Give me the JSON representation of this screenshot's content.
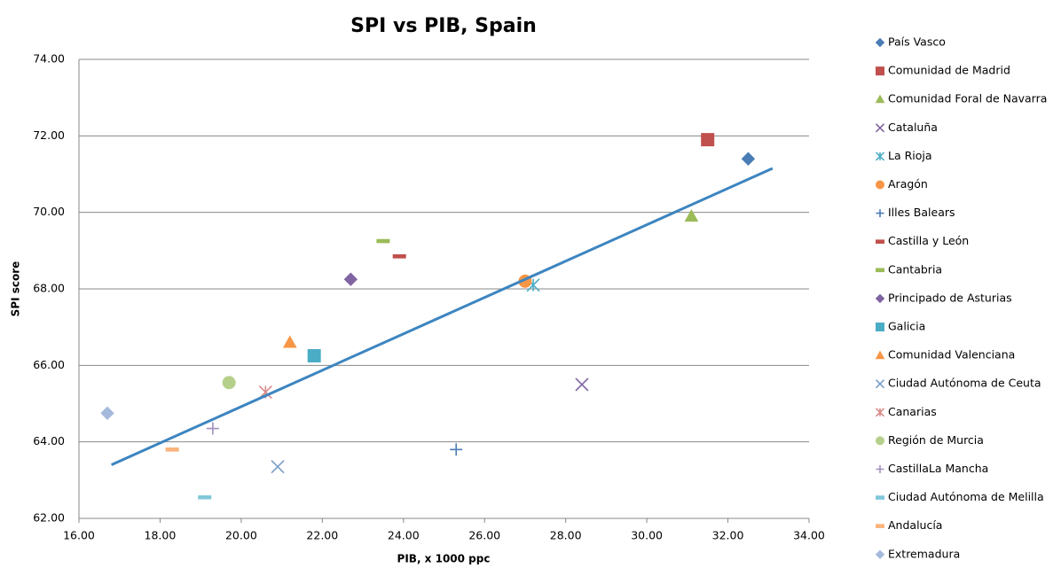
{
  "chart_data": {
    "type": "scatter",
    "title": "SPI vs PIB, Spain",
    "x_label": "PIB, x 1000 ppc",
    "y_label": "SPI score",
    "xlim": [
      16,
      34
    ],
    "ylim": [
      62,
      74
    ],
    "xticks": [
      {
        "value": 16,
        "label": "16.00"
      },
      {
        "value": 18,
        "label": "18.00"
      },
      {
        "value": 20,
        "label": "20.00"
      },
      {
        "value": 22,
        "label": "22.00"
      },
      {
        "value": 24,
        "label": "24.00"
      },
      {
        "value": 26,
        "label": "26.00"
      },
      {
        "value": 28,
        "label": "28.00"
      },
      {
        "value": 30,
        "label": "30.00"
      },
      {
        "value": 32,
        "label": "32.00"
      },
      {
        "value": 34,
        "label": "34.00"
      }
    ],
    "yticks": [
      {
        "value": 62,
        "label": "62.00"
      },
      {
        "value": 64,
        "label": "64.00"
      },
      {
        "value": 66,
        "label": "66.00"
      },
      {
        "value": 68,
        "label": "68.00"
      },
      {
        "value": 70,
        "label": "70.00"
      },
      {
        "value": 72,
        "label": "72.00"
      },
      {
        "value": 74,
        "label": "74.00"
      }
    ],
    "grid": true,
    "legend": "right",
    "series": [
      {
        "name": "País Vasco",
        "color": "#4a7db5",
        "marker": "diamond",
        "x": [
          32.5
        ],
        "y": [
          71.4
        ]
      },
      {
        "name": "Comunidad de Madrid",
        "color": "#c0504d",
        "marker": "square",
        "x": [
          31.5
        ],
        "y": [
          71.9
        ]
      },
      {
        "name": "Comunidad Foral de Navarra",
        "color": "#9bbb59",
        "marker": "triangle",
        "x": [
          31.1
        ],
        "y": [
          69.9
        ]
      },
      {
        "name": "Cataluña",
        "color": "#8064a2",
        "marker": "x",
        "x": [
          28.4
        ],
        "y": [
          65.5
        ]
      },
      {
        "name": "La Rioja",
        "color": "#4bacc6",
        "marker": "star",
        "x": [
          27.2
        ],
        "y": [
          68.1
        ]
      },
      {
        "name": "Aragón",
        "color": "#f79646",
        "marker": "circle",
        "x": [
          27.0
        ],
        "y": [
          68.2
        ]
      },
      {
        "name": "Illes Balears",
        "color": "#4a7db5",
        "marker": "plus",
        "x": [
          25.3
        ],
        "y": [
          63.8
        ]
      },
      {
        "name": "Castilla y León",
        "color": "#c0504d",
        "marker": "dash",
        "x": [
          23.9
        ],
        "y": [
          68.85
        ]
      },
      {
        "name": "Cantabria",
        "color": "#9bbb59",
        "marker": "dash",
        "x": [
          23.5
        ],
        "y": [
          69.25
        ]
      },
      {
        "name": "Principado de Asturias",
        "color": "#8064a2",
        "marker": "diamond",
        "x": [
          22.7
        ],
        "y": [
          68.25
        ]
      },
      {
        "name": "Galicia",
        "color": "#4bacc6",
        "marker": "square",
        "x": [
          21.8
        ],
        "y": [
          66.25
        ]
      },
      {
        "name": "Comunidad Valenciana",
        "color": "#f79646",
        "marker": "triangle",
        "x": [
          21.2
        ],
        "y": [
          66.6
        ]
      },
      {
        "name": "Ciudad Autónoma de Ceuta",
        "color": "#7a9cc9",
        "marker": "x",
        "x": [
          20.9
        ],
        "y": [
          63.35
        ]
      },
      {
        "name": "Canarias",
        "color": "#d98a88",
        "marker": "star",
        "x": [
          20.6
        ],
        "y": [
          65.3
        ]
      },
      {
        "name": "Región de Murcia",
        "color": "#b5d08b",
        "marker": "circle",
        "x": [
          19.7
        ],
        "y": [
          65.55
        ]
      },
      {
        "name": "CastillaLa Mancha",
        "color": "#a08fbf",
        "marker": "plus",
        "x": [
          19.3
        ],
        "y": [
          64.35
        ]
      },
      {
        "name": "Ciudad Autónoma de Melilla",
        "color": "#80c7d9",
        "marker": "dash",
        "x": [
          19.1
        ],
        "y": [
          62.55
        ]
      },
      {
        "name": "Andalucía",
        "color": "#f9b47d",
        "marker": "dash",
        "x": [
          18.3
        ],
        "y": [
          63.8
        ]
      },
      {
        "name": "Extremadura",
        "color": "#a5b9dc",
        "marker": "diamond",
        "x": [
          16.7
        ],
        "y": [
          64.75
        ]
      }
    ],
    "trendline": {
      "color": "#3d85c0",
      "x": [
        16.8,
        33.1
      ],
      "y": [
        63.4,
        71.15
      ]
    }
  }
}
